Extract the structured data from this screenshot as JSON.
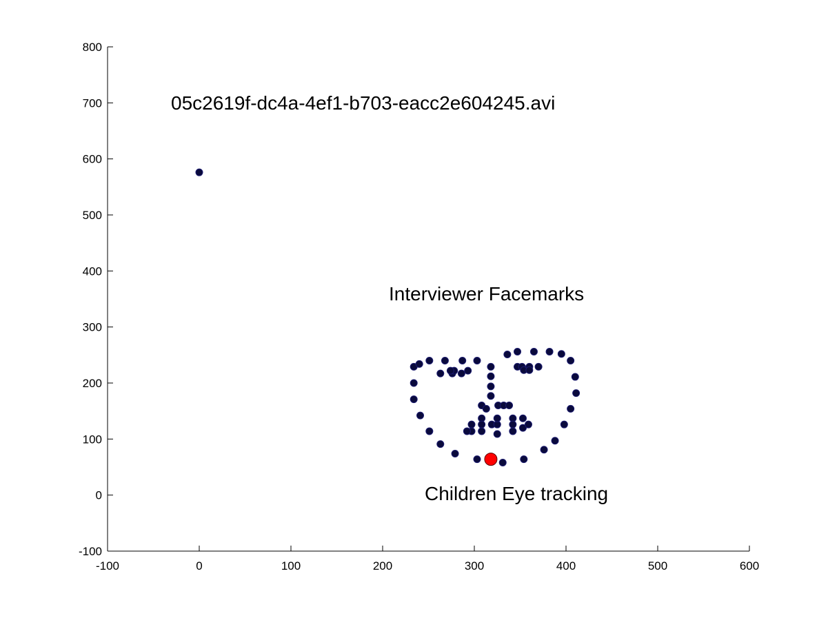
{
  "chart_data": {
    "type": "scatter",
    "xlim": [
      -100,
      600
    ],
    "ylim": [
      -100,
      800
    ],
    "xticks": [
      -100,
      0,
      100,
      200,
      300,
      400,
      500,
      600
    ],
    "yticks": [
      -100,
      0,
      100,
      200,
      300,
      400,
      500,
      600,
      700,
      800
    ],
    "grid": false,
    "annotations": [
      {
        "text": "05c2619f-dc4a-4ef1-b703-eacc2e604245.avi",
        "x": -32,
        "y": 700
      },
      {
        "text": "Interviewer Facemarks",
        "x": 207,
        "y": 355
      },
      {
        "text": "Children Eye tracking",
        "x": 246,
        "y": 0
      }
    ],
    "series": [
      {
        "color": "#0a0a3c",
        "marker": "circle",
        "points": [
          [
            0,
            576
          ],
          [
            234,
            229
          ],
          [
            240,
            234
          ],
          [
            251,
            240
          ],
          [
            268,
            240
          ],
          [
            287,
            240
          ],
          [
            303,
            240
          ],
          [
            263,
            217
          ],
          [
            276,
            217
          ],
          [
            286,
            217
          ],
          [
            278,
            222
          ],
          [
            274,
            222
          ],
          [
            293,
            222
          ],
          [
            234,
            200
          ],
          [
            234,
            171
          ],
          [
            241,
            142
          ],
          [
            251,
            114
          ],
          [
            263,
            91
          ],
          [
            279,
            74
          ],
          [
            303,
            64
          ],
          [
            331,
            58
          ],
          [
            354,
            64
          ],
          [
            376,
            81
          ],
          [
            388,
            97
          ],
          [
            398,
            126
          ],
          [
            405,
            154
          ],
          [
            411,
            182
          ],
          [
            410,
            211
          ],
          [
            405,
            240
          ],
          [
            395,
            252
          ],
          [
            382,
            256
          ],
          [
            365,
            256
          ],
          [
            347,
            256
          ],
          [
            336,
            251
          ],
          [
            347,
            229
          ],
          [
            352,
            229
          ],
          [
            354,
            223
          ],
          [
            360,
            229
          ],
          [
            360,
            223
          ],
          [
            370,
            229
          ],
          [
            318,
            229
          ],
          [
            318,
            212
          ],
          [
            318,
            194
          ],
          [
            318,
            177
          ],
          [
            308,
            160
          ],
          [
            313,
            154
          ],
          [
            326,
            160
          ],
          [
            332,
            160
          ],
          [
            338,
            160
          ],
          [
            308,
            137
          ],
          [
            308,
            126
          ],
          [
            308,
            114
          ],
          [
            297,
            126
          ],
          [
            297,
            114
          ],
          [
            292,
            114
          ],
          [
            319,
            126
          ],
          [
            325,
            126
          ],
          [
            325,
            137
          ],
          [
            325,
            109
          ],
          [
            342,
            137
          ],
          [
            342,
            126
          ],
          [
            342,
            114
          ],
          [
            353,
            137
          ],
          [
            353,
            120
          ],
          [
            359,
            126
          ]
        ]
      },
      {
        "color": "#ff0000",
        "marker": "circle-large",
        "points": [
          [
            318,
            64
          ]
        ]
      }
    ]
  }
}
